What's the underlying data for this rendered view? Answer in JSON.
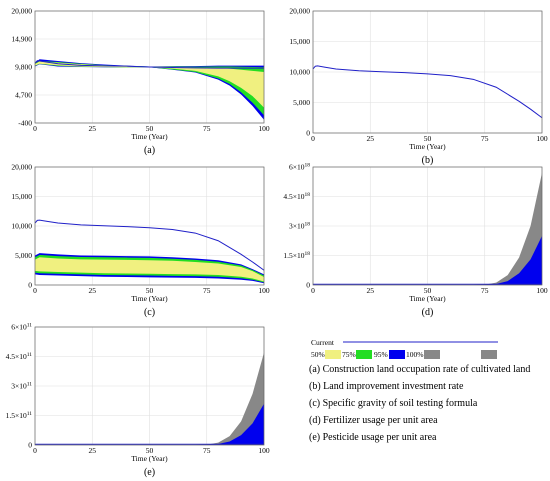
{
  "chart_data": [
    {
      "id": "a",
      "type": "area",
      "caption": "(a)",
      "xlabel": "Time (Year)",
      "x_ticks": [
        "0",
        "25",
        "50",
        "75",
        "100"
      ],
      "y_ticks": [
        "-400",
        "4,700",
        "9,800",
        "14,900",
        "20,000"
      ],
      "xlim": [
        0,
        100
      ],
      "ylim": [
        -400,
        20000
      ],
      "current": {
        "name": "Current",
        "x": [
          0,
          1,
          2,
          5,
          10,
          20,
          30,
          40,
          50,
          60,
          70,
          80,
          90,
          100
        ],
        "y": [
          10500,
          10950,
          10900,
          10700,
          10400,
          10100,
          10000,
          9950,
          9800,
          9700,
          9650,
          9600,
          9600,
          9600
        ]
      },
      "bands": [
        {
          "level": "100%",
          "x": [
            0,
            2,
            10,
            20,
            30,
            40,
            50,
            60,
            70,
            80,
            85,
            90,
            95,
            100
          ],
          "lo": [
            9900,
            10300,
            9900,
            9800,
            9750,
            9700,
            9750,
            9300,
            8800,
            7500,
            6400,
            4800,
            2700,
            200
          ],
          "hi": [
            10600,
            11200,
            10900,
            10500,
            10250,
            10050,
            9900,
            9950,
            9950,
            10050,
            10050,
            10050,
            10050,
            10050
          ]
        },
        {
          "level": "95%",
          "x": [
            0,
            2,
            10,
            20,
            30,
            40,
            50,
            60,
            70,
            80,
            85,
            90,
            95,
            100
          ],
          "lo": [
            10000,
            10350,
            10000,
            9850,
            9780,
            9720,
            9750,
            9350,
            8900,
            7700,
            6700,
            5200,
            3300,
            1000
          ],
          "hi": [
            10450,
            10900,
            10700,
            10400,
            10150,
            10000,
            9880,
            9900,
            9850,
            9900,
            9900,
            9850,
            9800,
            9750
          ]
        },
        {
          "level": "75%",
          "x": [
            0,
            2,
            10,
            20,
            30,
            40,
            50,
            60,
            70,
            80,
            85,
            90,
            95,
            100
          ],
          "lo": [
            10050,
            10400,
            10100,
            9900,
            9800,
            9750,
            9760,
            9500,
            9100,
            8100,
            7200,
            6000,
            4500,
            2400
          ],
          "hi": [
            10350,
            10800,
            10600,
            10300,
            10100,
            9950,
            9860,
            9820,
            9700,
            9600,
            9500,
            9300,
            9100,
            8900
          ]
        }
      ]
    },
    {
      "id": "b",
      "type": "line",
      "caption": "(b)",
      "xlabel": "Time (Year)",
      "x_ticks": [
        "0",
        "25",
        "50",
        "75",
        "100"
      ],
      "y_ticks": [
        "0",
        "5,000",
        "10,000",
        "15,000",
        "20,000"
      ],
      "xlim": [
        0,
        100
      ],
      "ylim": [
        0,
        20000
      ],
      "current": {
        "name": "Current",
        "x": [
          0,
          1,
          2,
          5,
          10,
          20,
          30,
          40,
          50,
          60,
          70,
          80,
          90,
          95,
          100
        ],
        "y": [
          10500,
          10950,
          11000,
          10800,
          10500,
          10200,
          10050,
          9900,
          9700,
          9400,
          8800,
          7500,
          5200,
          3900,
          2500
        ]
      }
    },
    {
      "id": "c",
      "type": "area",
      "caption": "(c)",
      "xlabel": "Time (Year)",
      "x_ticks": [
        "0",
        "25",
        "50",
        "75",
        "100"
      ],
      "y_ticks": [
        "0",
        "5,000",
        "10,000",
        "15,000",
        "20,000"
      ],
      "xlim": [
        0,
        100
      ],
      "ylim": [
        0,
        20000
      ],
      "current": {
        "name": "Current",
        "x": [
          0,
          1,
          2,
          5,
          10,
          20,
          30,
          40,
          50,
          60,
          70,
          80,
          90,
          95,
          100
        ],
        "y": [
          10500,
          10950,
          11000,
          10800,
          10500,
          10200,
          10050,
          9900,
          9700,
          9400,
          8800,
          7500,
          5200,
          3900,
          2500
        ]
      },
      "bands": [
        {
          "level": "100%",
          "x": [
            0,
            2,
            10,
            20,
            30,
            40,
            50,
            60,
            70,
            80,
            90,
            95,
            100
          ],
          "lo": [
            1800,
            1700,
            1600,
            1500,
            1400,
            1350,
            1300,
            1250,
            1200,
            1100,
            900,
            700,
            300
          ],
          "hi": [
            5000,
            5400,
            5200,
            5000,
            4950,
            4900,
            4850,
            4700,
            4500,
            4200,
            3500,
            2700,
            1800
          ]
        },
        {
          "level": "95%",
          "x": [
            0,
            2,
            10,
            20,
            30,
            40,
            50,
            60,
            70,
            80,
            90,
            95,
            100
          ],
          "lo": [
            2100,
            2000,
            1900,
            1800,
            1700,
            1650,
            1600,
            1550,
            1500,
            1400,
            1150,
            900,
            450
          ],
          " hi": [],
          "hi": [
            4700,
            5100,
            4900,
            4750,
            4700,
            4650,
            4600,
            4450,
            4250,
            3950,
            3300,
            2550,
            1600
          ]
        },
        {
          "level": "75%",
          "x": [
            0,
            2,
            10,
            20,
            30,
            40,
            50,
            60,
            70,
            80,
            90,
            95,
            100
          ],
          "lo": [
            2400,
            2300,
            2200,
            2100,
            2000,
            1950,
            1900,
            1850,
            1800,
            1700,
            1400,
            1100,
            600
          ],
          "hi": [
            4300,
            4700,
            4500,
            4350,
            4300,
            4250,
            4200,
            4100,
            3900,
            3650,
            3050,
            2350,
            1350
          ]
        }
      ]
    },
    {
      "id": "d",
      "type": "area",
      "caption": "(d)",
      "xlabel": "Time (Year)",
      "x_ticks": [
        "0",
        "25",
        "50",
        "75",
        "100"
      ],
      "y_ticks": [
        {
          "base": "0",
          "exp": ""
        },
        {
          "base": "1.5×10",
          "exp": "18"
        },
        {
          "base": "3×10",
          "exp": "18"
        },
        {
          "base": "4.5×10",
          "exp": "18"
        },
        {
          "base": "6×10",
          "exp": "18"
        }
      ],
      "xlim": [
        0,
        100
      ],
      "ylim": [
        0,
        6
      ],
      "bands": [
        {
          "level": "full",
          "x": [
            0,
            70,
            75,
            80,
            85,
            90,
            95,
            100
          ],
          "lo": [
            0,
            0,
            0,
            0,
            0,
            0,
            0,
            0
          ],
          "hi": [
            0,
            0,
            0.02,
            0.12,
            0.5,
            1.4,
            3.0,
            5.7
          ]
        },
        {
          "level": "100%",
          "x": [
            0,
            70,
            75,
            80,
            85,
            90,
            95,
            100
          ],
          "lo": [
            0,
            0,
            0,
            0,
            0,
            0,
            0,
            0
          ],
          "hi": [
            0,
            0,
            0.01,
            0.05,
            0.2,
            0.6,
            1.3,
            2.5
          ]
        }
      ]
    },
    {
      "id": "e",
      "type": "area",
      "caption": "(e)",
      "xlabel": "Time (Year)",
      "x_ticks": [
        "0",
        "25",
        "50",
        "75",
        "100"
      ],
      "y_ticks": [
        {
          "base": "0",
          "exp": ""
        },
        {
          "base": "1.5×10",
          "exp": "11"
        },
        {
          "base": "3×10",
          "exp": "11"
        },
        {
          "base": "4.5×10",
          "exp": "11"
        },
        {
          "base": "6×10",
          "exp": "11"
        }
      ],
      "xlim": [
        0,
        100
      ],
      "ylim": [
        0,
        6
      ],
      "bands": [
        {
          "level": "full",
          "x": [
            0,
            70,
            75,
            80,
            85,
            90,
            95,
            100
          ],
          "lo": [
            0,
            0,
            0,
            0,
            0,
            0,
            0,
            0
          ],
          "hi": [
            0,
            0,
            0.02,
            0.12,
            0.45,
            1.2,
            2.6,
            4.7
          ]
        },
        {
          "level": "100%",
          "x": [
            0,
            70,
            75,
            80,
            85,
            90,
            95,
            100
          ],
          "lo": [
            0,
            0,
            0,
            0,
            0,
            0,
            0,
            0
          ],
          "hi": [
            0,
            0,
            0.01,
            0.05,
            0.18,
            0.5,
            1.1,
            2.1
          ]
        }
      ]
    }
  ],
  "legend": {
    "current_label": "Current",
    "items": [
      "50%",
      "75%",
      "95%",
      "100%"
    ]
  },
  "descriptions": [
    "(a) Construction land occupation rate of cultivated land",
    "(b) Land improvement investment rate",
    "(c) Specific gravity of soil testing formula",
    "(d) Fertilizer usage per unit area",
    "(e) Pesticide usage per unit area"
  ],
  "colors": {
    "current": "#2020c8",
    "c50": "#ffff80",
    "c75": "#f0f080",
    "c95": "#22dd22",
    "c100": "#0000ee",
    "cfull": "#888888",
    "grid": "#e0e0e0"
  }
}
